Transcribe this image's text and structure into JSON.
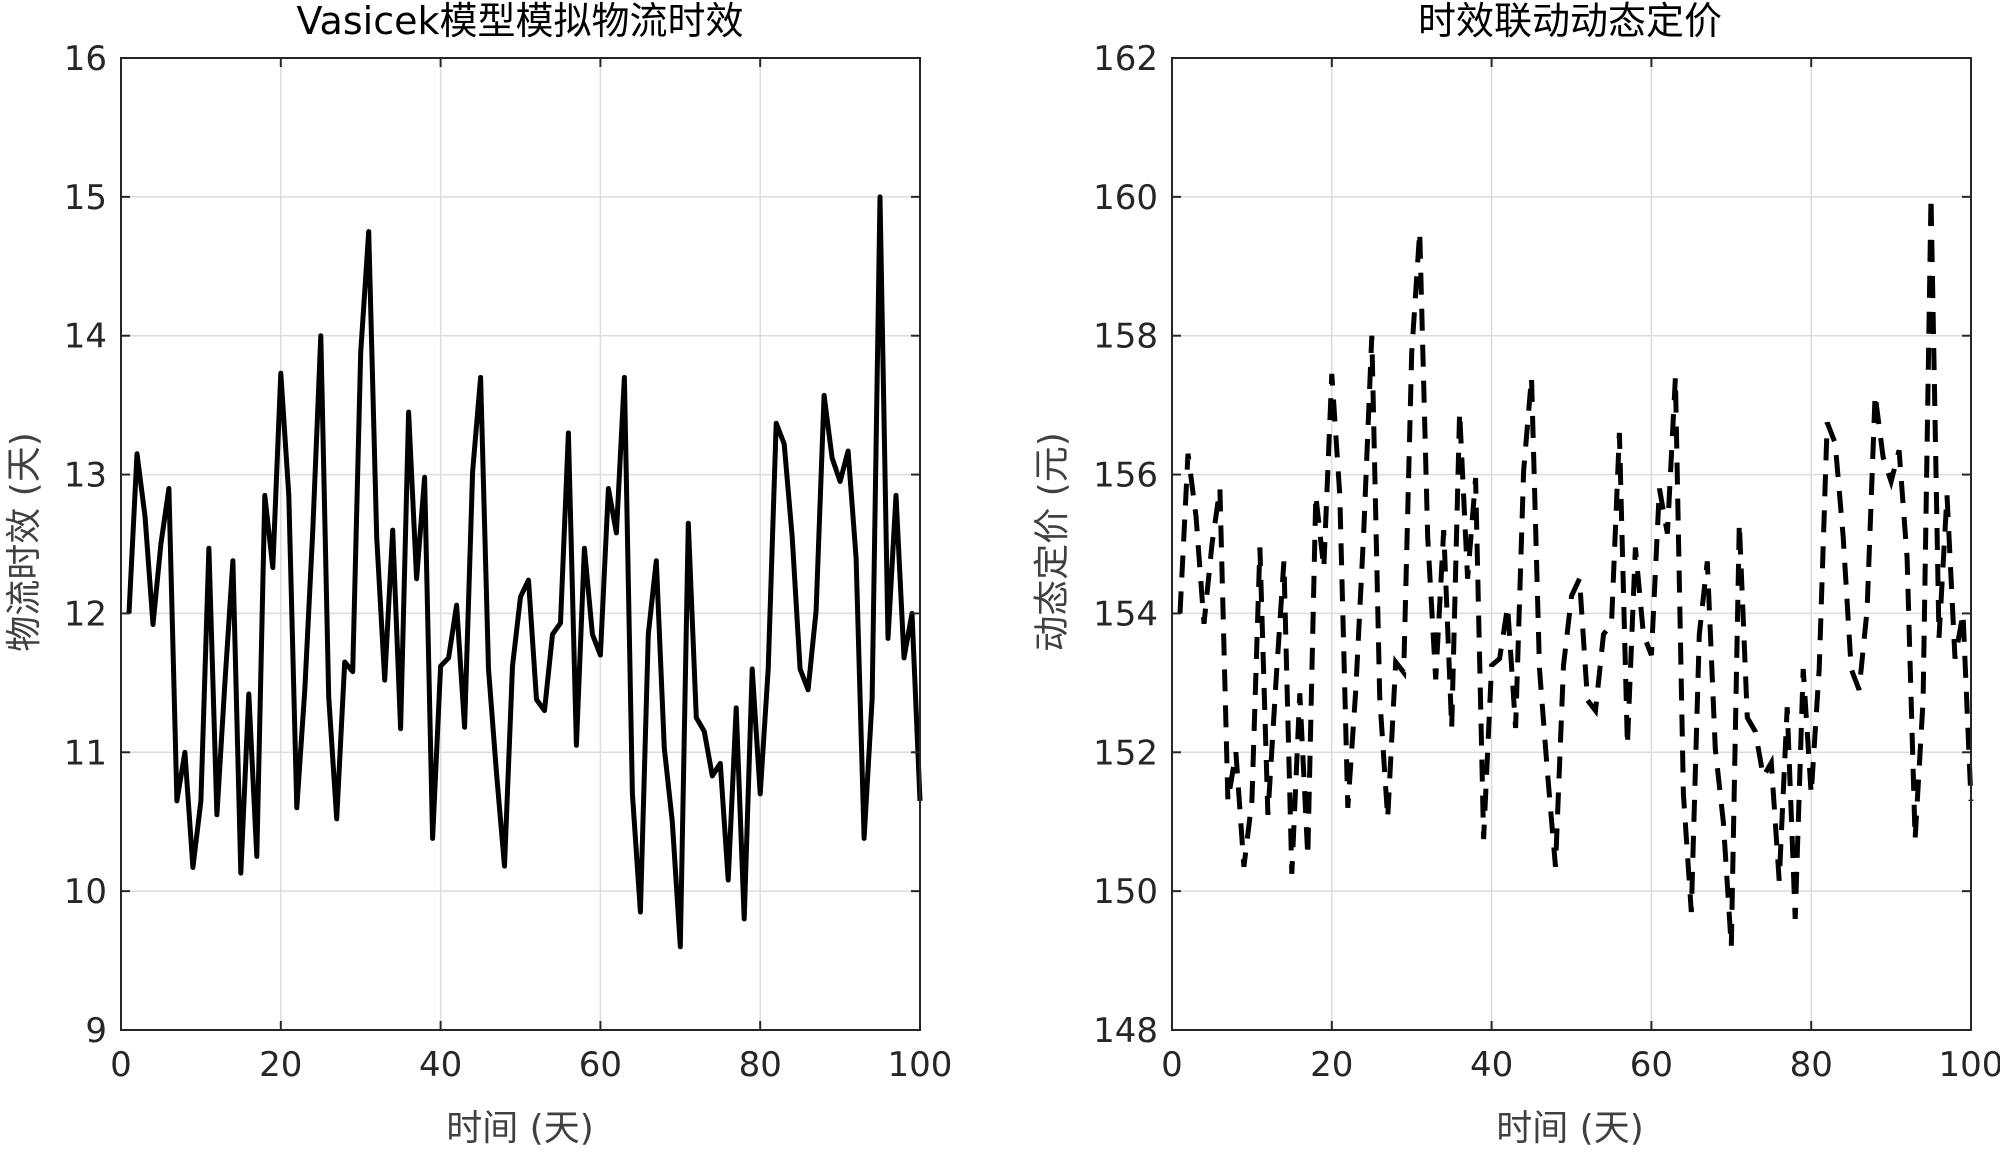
{
  "chart_data": [
    {
      "type": "line",
      "title": "Vasicek模型模拟物流时效",
      "xlabel": "时间 (天)",
      "ylabel": "物流时效 (天)",
      "xlim": [
        0,
        100
      ],
      "ylim": [
        9,
        16
      ],
      "xticks": [
        0,
        20,
        40,
        60,
        80,
        100
      ],
      "yticks": [
        9,
        10,
        11,
        12,
        13,
        14,
        15,
        16
      ],
      "grid": true,
      "line_style": "solid",
      "line_color": "#000000",
      "x": [
        1,
        2,
        3,
        4,
        5,
        6,
        7,
        8,
        9,
        10,
        11,
        12,
        13,
        14,
        15,
        16,
        17,
        18,
        19,
        20,
        21,
        22,
        23,
        24,
        25,
        26,
        27,
        28,
        29,
        30,
        31,
        32,
        33,
        34,
        35,
        36,
        37,
        38,
        39,
        40,
        41,
        42,
        43,
        44,
        45,
        46,
        47,
        48,
        49,
        50,
        51,
        52,
        53,
        54,
        55,
        56,
        57,
        58,
        59,
        60,
        61,
        62,
        63,
        64,
        65,
        66,
        67,
        68,
        69,
        70,
        71,
        72,
        73,
        74,
        75,
        76,
        77,
        78,
        79,
        80,
        81,
        82,
        83,
        84,
        85,
        86,
        87,
        88,
        89,
        90,
        91,
        92,
        93,
        94,
        95,
        96,
        97,
        98,
        99,
        100
      ],
      "values": [
        12.0,
        13.15,
        12.7,
        11.92,
        12.5,
        12.9,
        10.65,
        11.0,
        10.17,
        10.65,
        12.47,
        10.55,
        11.5,
        12.38,
        10.13,
        11.42,
        10.25,
        12.85,
        12.33,
        13.73,
        12.85,
        10.6,
        11.45,
        12.6,
        14.0,
        11.4,
        10.52,
        11.65,
        11.58,
        13.88,
        14.75,
        12.55,
        11.52,
        12.6,
        11.17,
        13.45,
        12.25,
        12.98,
        10.38,
        11.62,
        11.68,
        12.06,
        11.18,
        13.02,
        13.7,
        11.6,
        10.85,
        10.18,
        11.62,
        12.12,
        12.24,
        11.38,
        11.3,
        11.85,
        11.93,
        13.3,
        11.05,
        12.47,
        11.85,
        11.7,
        12.9,
        12.58,
        13.7,
        10.7,
        9.85,
        11.85,
        12.38,
        11.03,
        10.5,
        9.6,
        12.65,
        11.25,
        11.15,
        10.83,
        10.92,
        10.08,
        11.32,
        9.8,
        11.6,
        10.7,
        11.6,
        13.37,
        13.22,
        12.55,
        11.6,
        11.45,
        12.02,
        13.57,
        13.12,
        12.95,
        13.17,
        12.4,
        10.38,
        11.38,
        15.0,
        11.82,
        12.85,
        11.68,
        12.0,
        10.65
      ]
    },
    {
      "type": "line",
      "title": "时效联动动态定价",
      "xlabel": "时间 (天)",
      "ylabel": "动态定价 (元)",
      "xlim": [
        0,
        100
      ],
      "ylim": [
        148,
        162
      ],
      "xticks": [
        0,
        20,
        40,
        60,
        80,
        100
      ],
      "yticks": [
        148,
        150,
        152,
        154,
        156,
        158,
        160,
        162
      ],
      "grid": true,
      "line_style": "dashed",
      "line_color": "#000000",
      "x": [
        1,
        2,
        3,
        4,
        5,
        6,
        7,
        8,
        9,
        10,
        11,
        12,
        13,
        14,
        15,
        16,
        17,
        18,
        19,
        20,
        21,
        22,
        23,
        24,
        25,
        26,
        27,
        28,
        29,
        30,
        31,
        32,
        33,
        34,
        35,
        36,
        37,
        38,
        39,
        40,
        41,
        42,
        43,
        44,
        45,
        46,
        47,
        48,
        49,
        50,
        51,
        52,
        53,
        54,
        55,
        56,
        57,
        58,
        59,
        60,
        61,
        62,
        63,
        64,
        65,
        66,
        67,
        68,
        69,
        70,
        71,
        72,
        73,
        74,
        75,
        76,
        77,
        78,
        79,
        80,
        81,
        82,
        83,
        84,
        85,
        86,
        87,
        88,
        89,
        90,
        91,
        92,
        93,
        94,
        95,
        96,
        97,
        98,
        99,
        100
      ],
      "values": [
        154.0,
        156.3,
        155.4,
        153.85,
        155.0,
        155.8,
        151.3,
        152.0,
        150.35,
        151.3,
        154.95,
        151.1,
        153.0,
        154.75,
        150.25,
        152.85,
        150.5,
        155.7,
        154.65,
        157.45,
        155.7,
        151.2,
        152.9,
        155.2,
        158.0,
        152.8,
        151.05,
        153.3,
        153.15,
        157.75,
        159.5,
        155.1,
        153.05,
        155.2,
        152.35,
        156.9,
        154.5,
        155.95,
        150.75,
        153.25,
        153.35,
        154.1,
        152.35,
        156.05,
        157.4,
        153.2,
        151.7,
        150.35,
        153.25,
        154.25,
        154.5,
        152.75,
        152.6,
        153.7,
        153.85,
        156.6,
        152.1,
        154.95,
        153.7,
        153.4,
        155.8,
        155.15,
        157.4,
        151.4,
        149.7,
        153.7,
        154.75,
        152.05,
        151.0,
        149.2,
        155.3,
        152.5,
        152.3,
        151.65,
        151.85,
        150.15,
        152.65,
        149.6,
        153.2,
        151.4,
        153.2,
        156.75,
        156.45,
        155.1,
        153.2,
        152.9,
        154.05,
        157.15,
        156.25,
        155.9,
        156.35,
        154.8,
        150.75,
        152.75,
        160.0,
        153.65,
        155.7,
        153.35,
        154.0,
        151.3
      ]
    }
  ]
}
